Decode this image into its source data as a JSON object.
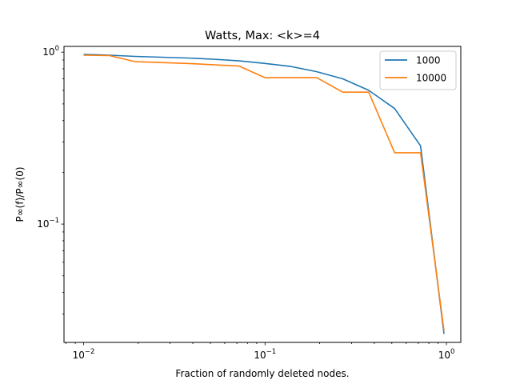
{
  "chart_data": {
    "type": "line",
    "title": "Watts, Max: <k>=4",
    "xlabel": "Fraction of randomly deleted nodes.",
    "ylabel": "P∞(f)/P∞(0)",
    "xscale": "log",
    "yscale": "log",
    "xlim": [
      0.0078,
      1.2
    ],
    "ylim": [
      0.0205,
      1.08
    ],
    "x_ticks": [
      {
        "value": 0.01,
        "base": "10",
        "exp": "−2"
      },
      {
        "value": 0.1,
        "base": "10",
        "exp": "−1"
      },
      {
        "value": 1,
        "base": "10",
        "exp": "0"
      }
    ],
    "y_ticks": [
      {
        "value": 0.1,
        "base": "10",
        "exp": "−1"
      },
      {
        "value": 1,
        "base": "10",
        "exp": "0"
      }
    ],
    "legend_position": "top-right",
    "series": [
      {
        "name": "1000",
        "color": "#1f77b4",
        "x": [
          0.01,
          0.0139,
          0.0193,
          0.0268,
          0.0373,
          0.0518,
          0.072,
          0.1,
          0.139,
          0.193,
          0.268,
          0.373,
          0.518,
          0.72,
          0.97
        ],
        "y": [
          0.97,
          0.96,
          0.945,
          0.935,
          0.925,
          0.91,
          0.89,
          0.86,
          0.825,
          0.77,
          0.7,
          0.6,
          0.47,
          0.285,
          0.023
        ]
      },
      {
        "name": "10000",
        "color": "#ff7f0e",
        "x": [
          0.01,
          0.0139,
          0.0193,
          0.0268,
          0.0373,
          0.0518,
          0.072,
          0.1,
          0.139,
          0.193,
          0.268,
          0.373,
          0.518,
          0.72,
          0.97
        ],
        "y": [
          0.96,
          0.955,
          0.88,
          0.87,
          0.86,
          0.845,
          0.83,
          0.71,
          0.71,
          0.71,
          0.585,
          0.585,
          0.26,
          0.26,
          0.024
        ]
      }
    ]
  }
}
